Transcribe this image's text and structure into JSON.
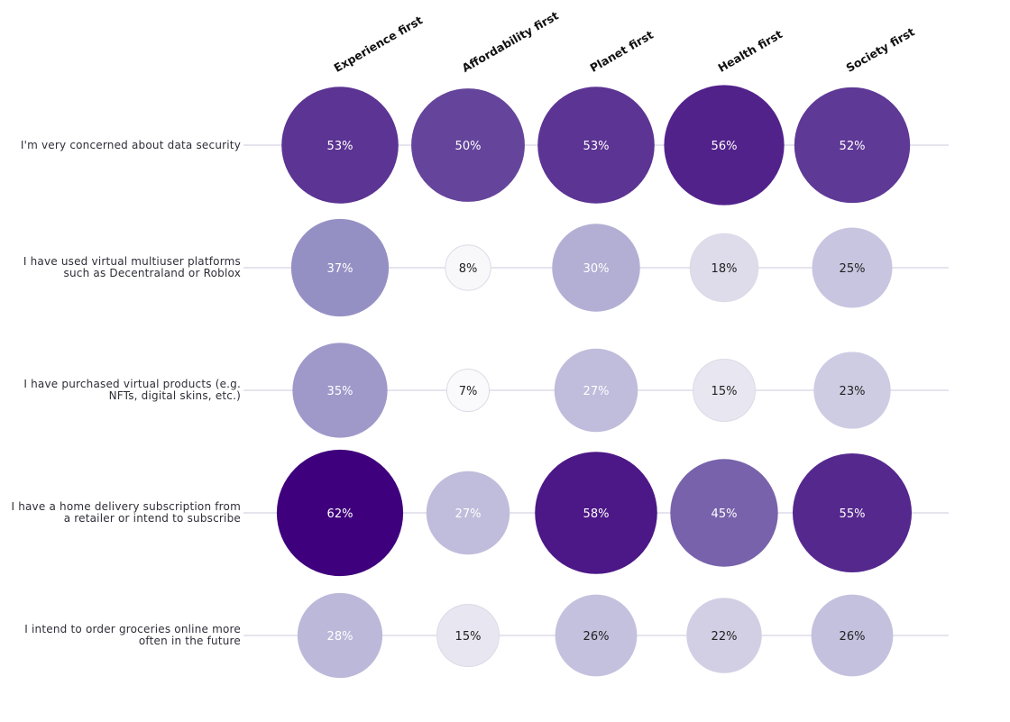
{
  "chart_data": {
    "type": "heatmap",
    "mark": "bubble",
    "size_encoding": "area proportional to value",
    "columns": [
      "Experience first",
      "Affordability first",
      "Planet first",
      "Health first",
      "Society first"
    ],
    "rows": [
      "I'm very concerned about data security",
      "I have used virtual multiuser platforms such as Decentraland or Roblox",
      "I have purchased virtual products (e.g. NFTs, digital skins, etc.)",
      "I have a home delivery subscription from a retailer or intend to subscribe",
      "I intend to order groceries online more often in the future"
    ],
    "values": [
      [
        53,
        50,
        53,
        56,
        52
      ],
      [
        37,
        8,
        30,
        18,
        25
      ],
      [
        35,
        7,
        27,
        15,
        23
      ],
      [
        62,
        27,
        58,
        45,
        55
      ],
      [
        28,
        15,
        26,
        22,
        26
      ]
    ],
    "unit": "%",
    "color_scale": [
      {
        "value": 7,
        "color": "#fafafc"
      },
      {
        "value": 15,
        "color": "#e8e6f0"
      },
      {
        "value": 25,
        "color": "#c8c5e0"
      },
      {
        "value": 37,
        "color": "#9590c4"
      },
      {
        "value": 50,
        "color": "#65459b"
      },
      {
        "value": 56,
        "color": "#52228b"
      },
      {
        "value": 62,
        "color": "#3f007d"
      }
    ],
    "gridline_color": "#e6e4ee",
    "light_label_color": "#ffffff",
    "dark_label_color": "#222222"
  }
}
